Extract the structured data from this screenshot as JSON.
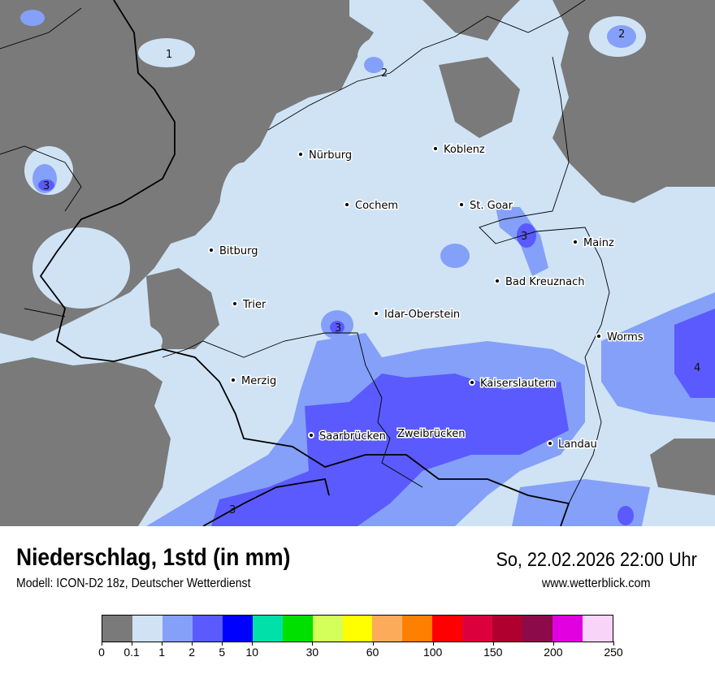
{
  "header": {
    "title": "Niederschlag, 1std (in mm)",
    "subtitle": "Modell: ICON-D2 18z, Deutscher Wetterdienst",
    "datetime": "So, 22.02.2026 22:00 Uhr",
    "website": "www.wetterblick.com"
  },
  "legend": {
    "colors": [
      "#7a7a7a",
      "#cfe3f5",
      "#84a0f8",
      "#5a5aff",
      "#0000ff",
      "#00e0a8",
      "#00e000",
      "#d4ff5a",
      "#ffff00",
      "#fbab5a",
      "#ff7f00",
      "#ff0000",
      "#dc003c",
      "#b00030",
      "#8c0a4a",
      "#e000e0",
      "#f8d4f8"
    ],
    "ticks": [
      {
        "i": 0,
        "label": "0"
      },
      {
        "i": 1,
        "label": "0.1"
      },
      {
        "i": 2,
        "label": "1"
      },
      {
        "i": 3,
        "label": "2"
      },
      {
        "i": 4,
        "label": "5"
      },
      {
        "i": 5,
        "label": "10"
      },
      {
        "i": 7,
        "label": "30"
      },
      {
        "i": 9,
        "label": "60"
      },
      {
        "i": 11,
        "label": "100"
      },
      {
        "i": 13,
        "label": "150"
      },
      {
        "i": 15,
        "label": "200"
      },
      {
        "i": 17,
        "label": "250"
      }
    ]
  },
  "cities": [
    "Nürburg",
    "Koblenz",
    "Cochem",
    "St. Goar",
    "Mainz",
    "Bitburg",
    "Bad Kreuznach",
    "Trier",
    "Idar-Oberstein",
    "Worms",
    "Merzig",
    "Kaiserslautern",
    "Saarbrücken",
    "Zweibrücken",
    "Landau"
  ],
  "contour_labels": [
    "1",
    "2",
    "2",
    "3",
    "3",
    "3",
    "4",
    "3"
  ]
}
